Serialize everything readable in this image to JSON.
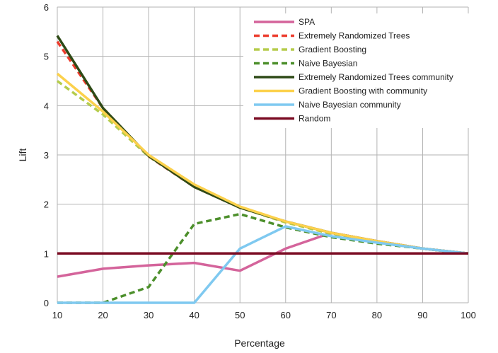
{
  "chart_data": {
    "type": "line",
    "xlabel": "Percentage",
    "ylabel": "Lift",
    "xlim": [
      10,
      100
    ],
    "ylim": [
      0,
      6
    ],
    "x_ticks": [
      "10",
      "20",
      "30",
      "40",
      "50",
      "60",
      "70",
      "80",
      "90",
      "100"
    ],
    "y_ticks": [
      "0",
      "1",
      "2",
      "3",
      "4",
      "5",
      "6"
    ],
    "grid": true,
    "legend_position": "top-right",
    "x": [
      10,
      20,
      30,
      40,
      50,
      60,
      70,
      80,
      90,
      100
    ],
    "series": [
      {
        "name": "SPA",
        "color": "#d4649b",
        "dash": "solid",
        "values": [
          0.53,
          0.69,
          0.76,
          0.81,
          0.65,
          1.1,
          1.42,
          1.25,
          1.1,
          1.0
        ]
      },
      {
        "name": "Extremely Randomized Trees",
        "color": "#ec3b2c",
        "dash": "dashed",
        "values": [
          5.3,
          3.95,
          2.97,
          2.35,
          1.93,
          1.65,
          1.42,
          1.25,
          1.1,
          1.0
        ]
      },
      {
        "name": "Gradient Boosting",
        "color": "#b5cc4b",
        "dash": "dashed",
        "values": [
          4.5,
          3.82,
          2.97,
          2.38,
          1.93,
          1.63,
          1.4,
          1.24,
          1.1,
          1.0
        ]
      },
      {
        "name": "Naive Bayesian",
        "color": "#4c8f2b",
        "dash": "dashed",
        "values": [
          0.0,
          0.0,
          0.32,
          1.6,
          1.8,
          1.53,
          1.33,
          1.2,
          1.1,
          1.0
        ]
      },
      {
        "name": "Extremely Randomized Trees community",
        "color": "#2e4a16",
        "dash": "solid",
        "values": [
          5.42,
          3.95,
          2.98,
          2.35,
          1.93,
          1.65,
          1.42,
          1.25,
          1.1,
          1.0
        ]
      },
      {
        "name": "Gradient Boosting with community",
        "color": "#fcd14c",
        "dash": "solid",
        "values": [
          4.65,
          3.88,
          3.0,
          2.4,
          1.95,
          1.65,
          1.42,
          1.25,
          1.1,
          1.0
        ]
      },
      {
        "name": "Naive Bayesian community",
        "color": "#7fc9f0",
        "dash": "solid",
        "values": [
          0.0,
          0.0,
          0.0,
          0.0,
          1.1,
          1.55,
          1.35,
          1.22,
          1.1,
          1.0
        ]
      },
      {
        "name": "Random",
        "color": "#7a0a22",
        "dash": "solid",
        "values": [
          1.0,
          1.0,
          1.0,
          1.0,
          1.0,
          1.0,
          1.0,
          1.0,
          1.0,
          1.0
        ]
      }
    ]
  }
}
